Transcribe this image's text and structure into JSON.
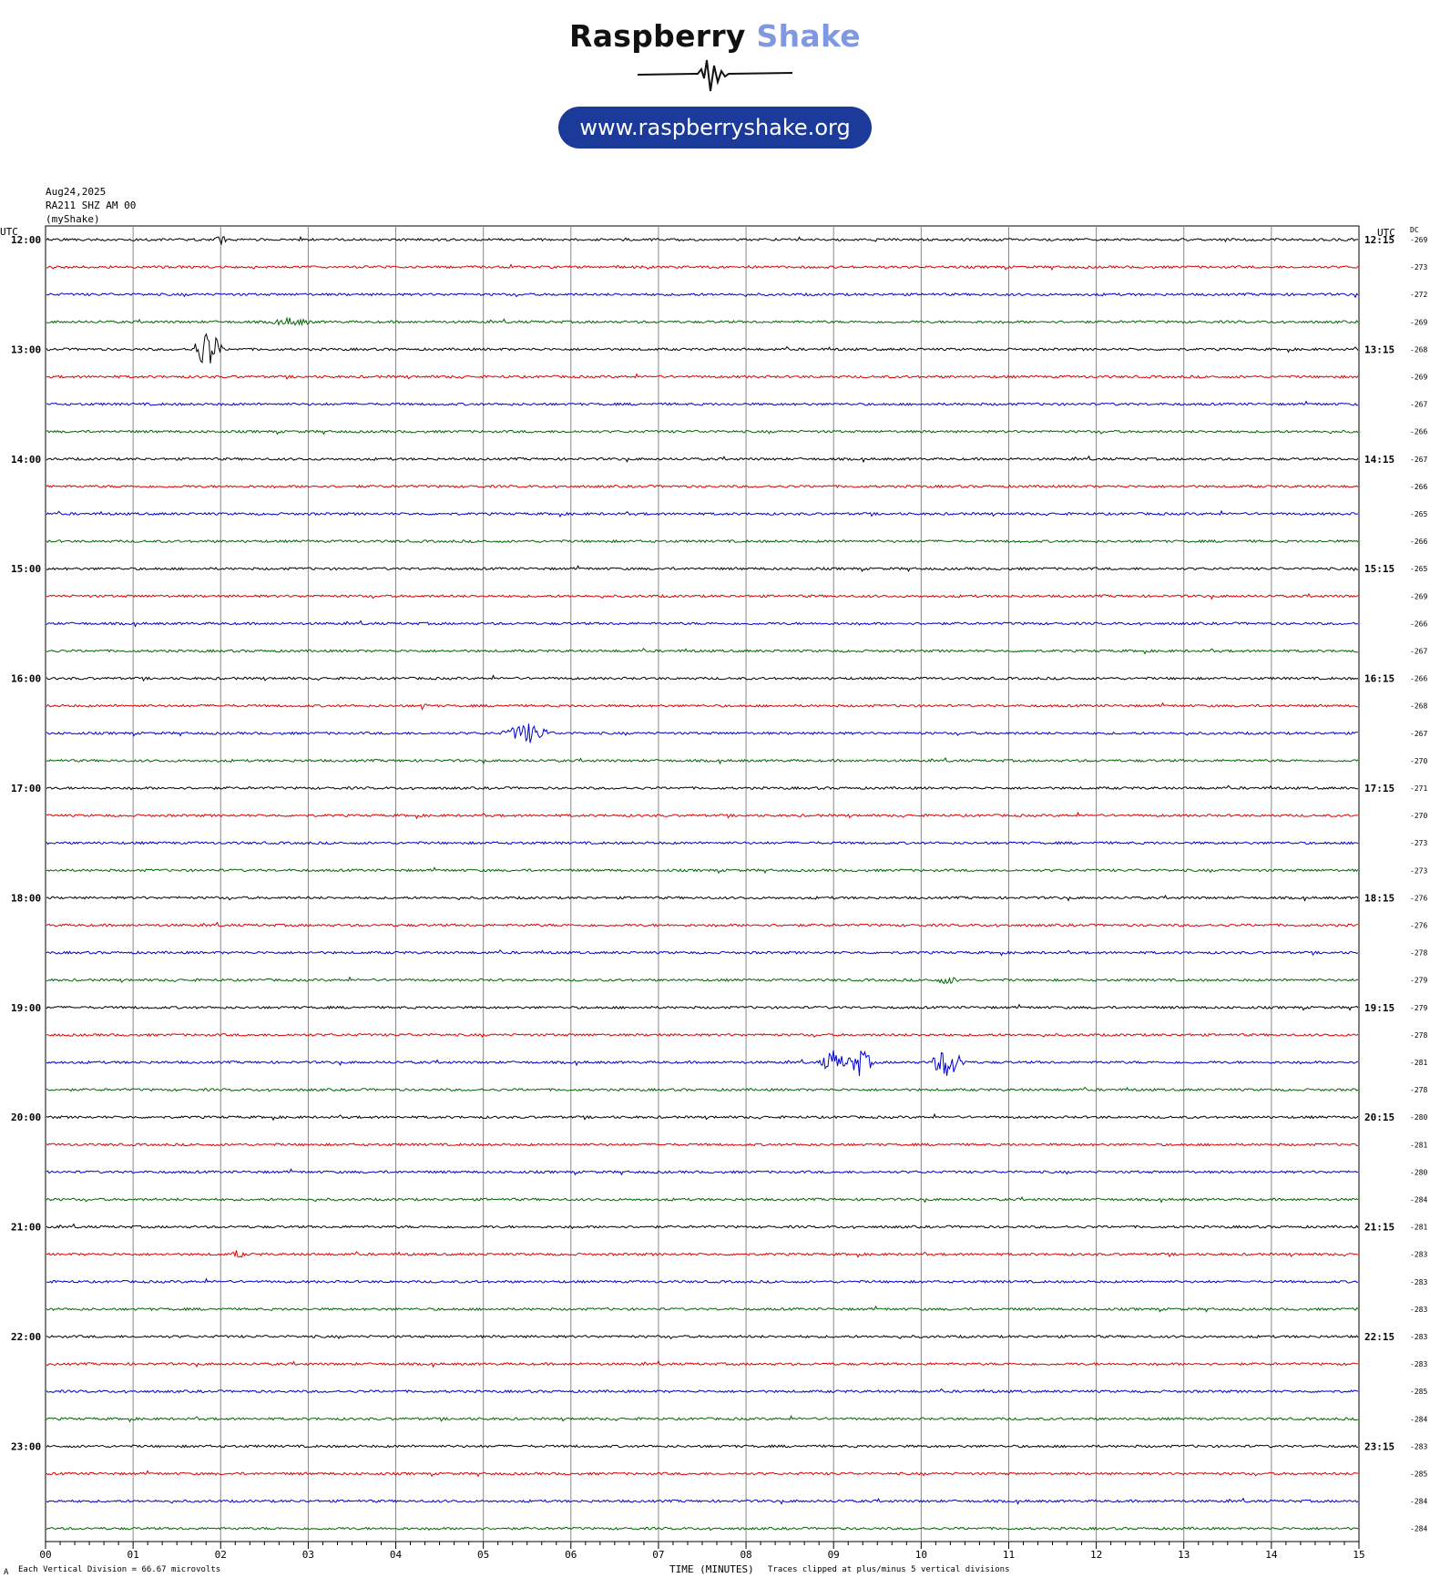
{
  "header": {
    "brand_word1": "Raspberry",
    "brand_word2": "Shake",
    "url": "www.raspberryshake.org",
    "date": "Aug24,2025",
    "station": "RA211 SHZ AM 00",
    "network": "(myShake)"
  },
  "colors": {
    "trace": [
      "#000000",
      "#dd0000",
      "#0000cc",
      "#006600"
    ],
    "grid": "#888888",
    "brand_dark": "#1c3a9a",
    "brand_light": "#7f98e0"
  },
  "footer": {
    "scale_note": "Each Vertical Division =   66.67 microvolts",
    "time_label": "TIME (MINUTES)",
    "clip_note": "Traces clipped at plus/minus 5 vertical divisions",
    "corner_mark": "A"
  },
  "chart_data": {
    "type": "line",
    "title": "",
    "left_header": "UTC",
    "right_header": "UTC",
    "dc_header": "DC",
    "xlabel": "TIME (MINUTES)",
    "x_ticks": [
      "00",
      "01",
      "02",
      "03",
      "04",
      "05",
      "06",
      "07",
      "08",
      "09",
      "10",
      "11",
      "12",
      "13",
      "14",
      "15"
    ],
    "xlim": [
      0,
      15
    ],
    "left_hour_labels": [
      "12:00",
      "13:00",
      "14:00",
      "15:00",
      "16:00",
      "17:00",
      "18:00",
      "19:00",
      "20:00",
      "21:00",
      "22:00",
      "23:00"
    ],
    "right_hour_labels": [
      "12:15",
      "13:15",
      "14:15",
      "15:15",
      "16:15",
      "17:15",
      "18:15",
      "19:15",
      "20:15",
      "21:15",
      "22:15",
      "23:15"
    ],
    "traces_per_hour": 4,
    "dc_offsets": [
      "-269",
      "-273",
      "-272",
      "-269",
      "-268",
      "-269",
      "-267",
      "-266",
      "-267",
      "-266",
      "-265",
      "-266",
      "-265",
      "-269",
      "-266",
      "-267",
      "-266",
      "-268",
      "-267",
      "-270",
      "-271",
      "-270",
      "-273",
      "-273",
      "-276",
      "-276",
      "-278",
      "-279",
      "-279",
      "-278",
      "-281",
      "-278",
      "-280",
      "-281",
      "-280",
      "-284",
      "-281",
      "-283",
      "-283",
      "-283",
      "-283",
      "-283",
      "-285",
      "-284",
      "-283",
      "-285",
      "-284",
      "-284"
    ],
    "events": [
      {
        "trace": 0,
        "minute": 2.0,
        "amp": 6,
        "dur": 0.1
      },
      {
        "trace": 3,
        "minute": 2.8,
        "amp": 5,
        "dur": 0.4
      },
      {
        "trace": 4,
        "minute": 1.85,
        "amp": 25,
        "dur": 0.2
      },
      {
        "trace": 17,
        "minute": 4.3,
        "amp": 4,
        "dur": 0.1
      },
      {
        "trace": 18,
        "minute": 5.5,
        "amp": 12,
        "dur": 0.35
      },
      {
        "trace": 30,
        "minute": 9.0,
        "amp": 14,
        "dur": 0.2
      },
      {
        "trace": 30,
        "minute": 9.3,
        "amp": 16,
        "dur": 0.2
      },
      {
        "trace": 30,
        "minute": 10.3,
        "amp": 18,
        "dur": 0.25
      },
      {
        "trace": 37,
        "minute": 2.2,
        "amp": 6,
        "dur": 0.1
      },
      {
        "trace": 27,
        "minute": 10.3,
        "amp": 5,
        "dur": 0.2
      }
    ]
  }
}
